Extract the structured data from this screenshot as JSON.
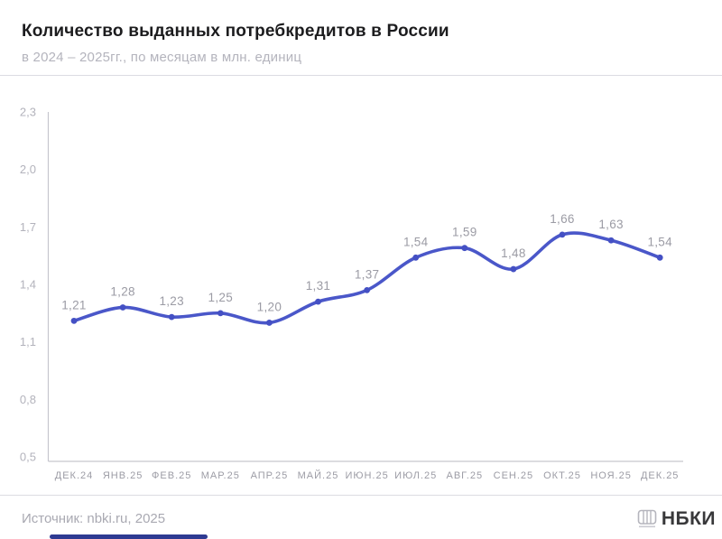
{
  "header": {
    "title": "Количество выданных потребкредитов в России",
    "subtitle": "в 2024 – 2025гг., по месяцам в млн. единиц"
  },
  "chart_data": {
    "type": "line",
    "title": "Количество выданных потребкредитов в России",
    "subtitle": "в 2024 – 2025гг., по месяцам в млн. единиц",
    "categories": [
      "ДЕК.24",
      "ЯНВ.25",
      "ФЕВ.25",
      "МАР.25",
      "АПР.25",
      "МАЙ.25",
      "ИЮН.25",
      "ИЮЛ.25",
      "АВГ.25",
      "СЕН.25",
      "ОКТ.25",
      "НОЯ.25",
      "ДЕК.25"
    ],
    "values": [
      1.21,
      1.28,
      1.23,
      1.25,
      1.2,
      1.31,
      1.37,
      1.54,
      1.59,
      1.48,
      1.66,
      1.63,
      1.54
    ],
    "value_labels": [
      "1,21",
      "1,28",
      "1,23",
      "1,25",
      "1,20",
      "1,31",
      "1,37",
      "1,54",
      "1,59",
      "1,48",
      "1,66",
      "1,63",
      "1,54"
    ],
    "y_tick_values": [
      0.5,
      0.8,
      1.1,
      1.4,
      1.7,
      2.0,
      2.3
    ],
    "y_tick_labels": [
      "0,5",
      "0,8",
      "1,1",
      "1,4",
      "1,7",
      "2,0",
      "2,3"
    ],
    "ylim": [
      0.5,
      2.3
    ],
    "grid": false,
    "legend": false,
    "line_color": "#4a57c9",
    "marker_color": "#4450c4",
    "data_label_color": "#9b9ba4",
    "axis_color": "#c6c6ce",
    "tick_label_color": "#b3b3bc",
    "x_label_color": "#9c9ca5"
  },
  "footer": {
    "source": "Источник: nbki.ru, 2025",
    "brand": "НБКИ"
  },
  "bottom_bar_color": "#2e3a92"
}
